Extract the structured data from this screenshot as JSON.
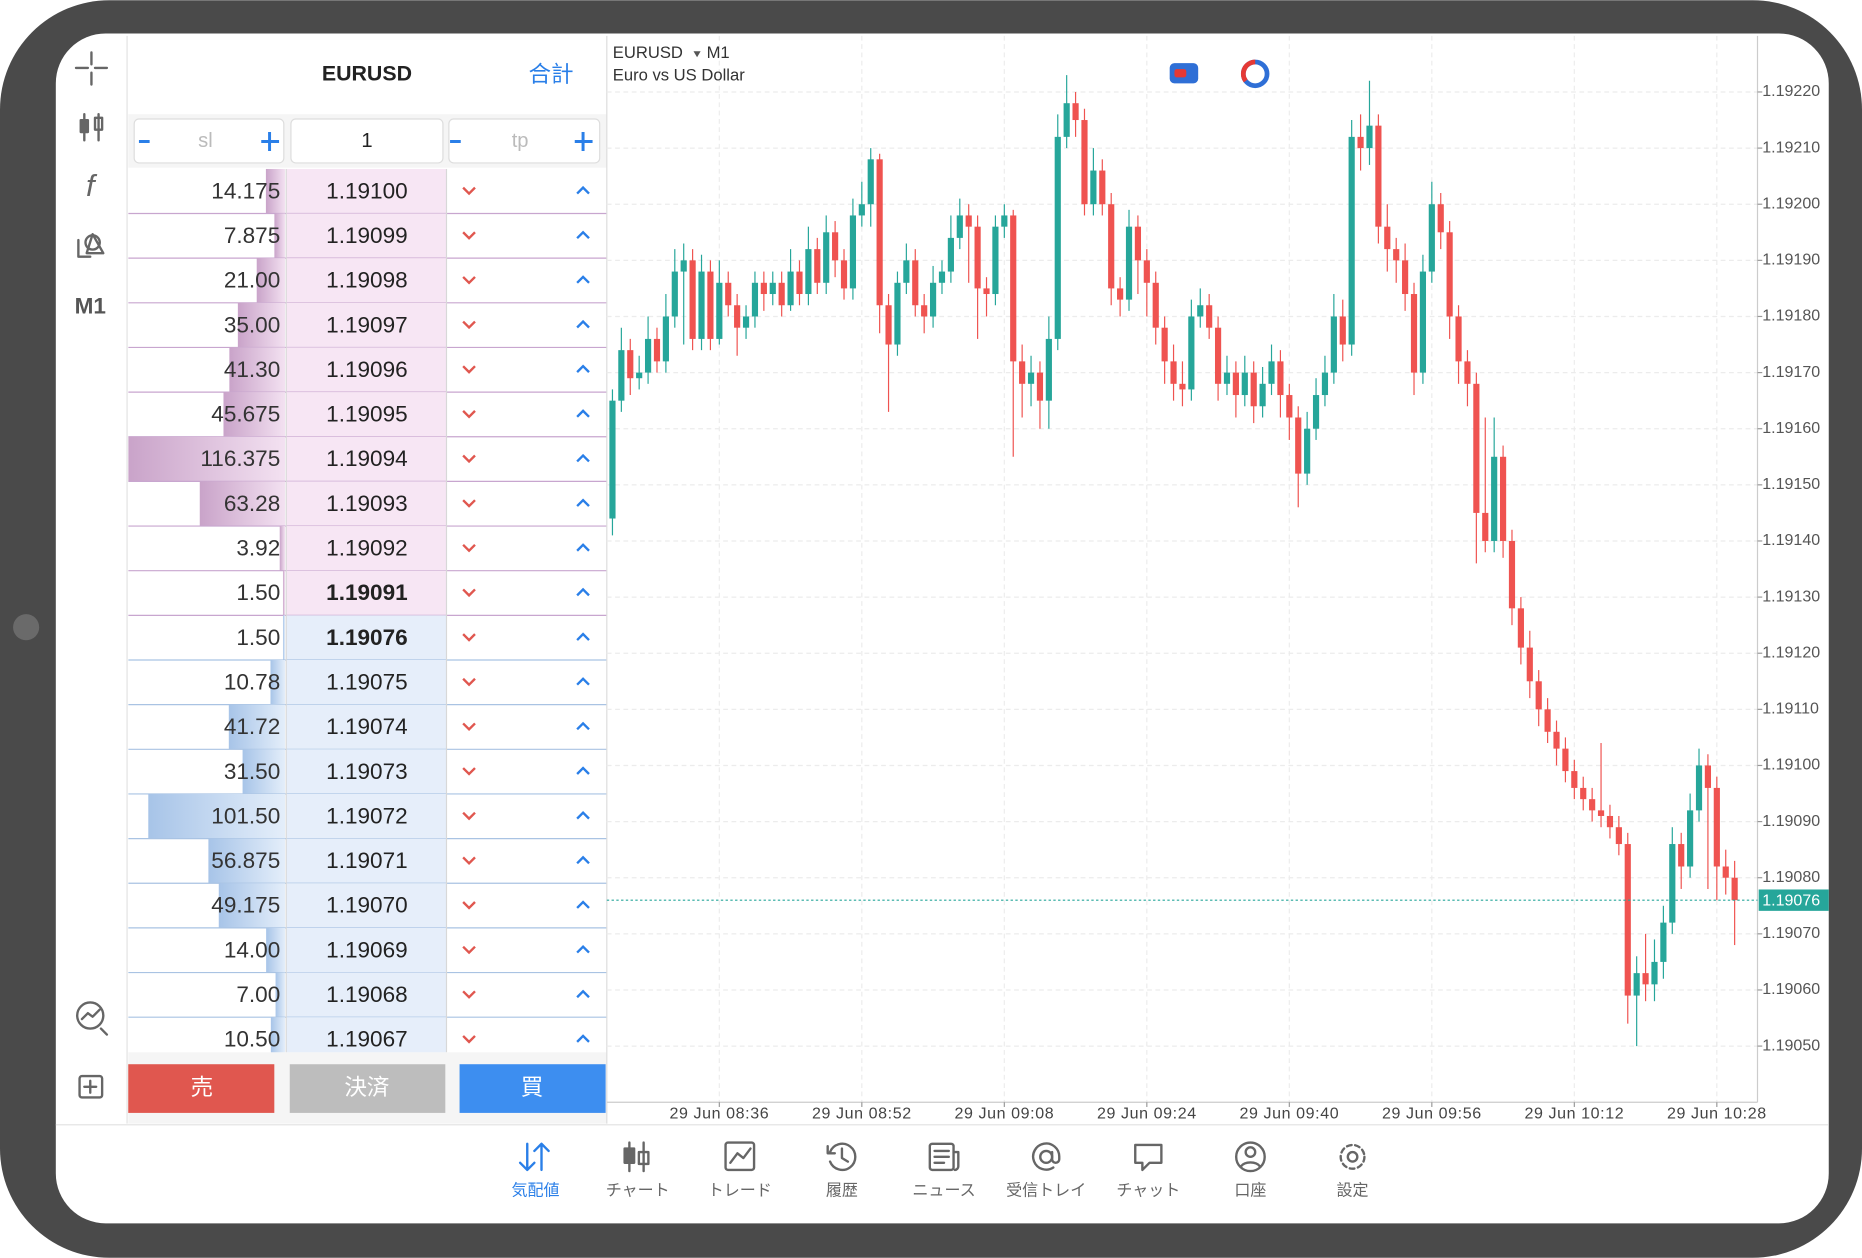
{
  "toolbar": {
    "timeframe": "M1"
  },
  "dom": {
    "symbol": "EURUSD",
    "total": "合計",
    "sl": "sl",
    "lots": "1",
    "tp": "tp",
    "asks": {
      "prices": [
        "1.19100",
        "1.19099",
        "1.19098",
        "1.19097",
        "1.19096",
        "1.19095",
        "1.19094",
        "1.19093",
        "1.19092",
        "1.19091"
      ],
      "volumes": [
        14.175,
        7.875,
        21,
        35,
        41.3,
        45.675,
        116.375,
        63.28,
        3.92,
        1.5
      ],
      "volume_labels": [
        "14.175",
        "7.875",
        "21.00",
        "35.00",
        "41.30",
        "45.675",
        "116.375",
        "63.28",
        "3.92",
        "1.50"
      ]
    },
    "bids": {
      "prices": [
        "1.19076",
        "1.19075",
        "1.19074",
        "1.19073",
        "1.19072",
        "1.19071",
        "1.19070",
        "1.19069",
        "1.19068",
        "1.19067"
      ],
      "volumes": [
        1.5,
        10.78,
        41.72,
        31.5,
        101.5,
        56.875,
        49.175,
        14,
        7,
        10.5
      ],
      "volume_labels": [
        "1.50",
        "10.78",
        "41.72",
        "31.50",
        "101.50",
        "56.875",
        "49.175",
        "14.00",
        "7.00",
        "10.50"
      ]
    },
    "buttons": {
      "sell": "売",
      "close": "決済",
      "buy": "買"
    }
  },
  "chart_data": {
    "type": "candlestick",
    "symbol": "EURUSD",
    "timeframe": "M1",
    "description": "Euro vs US Dollar",
    "colors": {
      "up": "#26a69a",
      "down": "#ef5350"
    },
    "grid": true,
    "x": [
      "29 Jun 08:24",
      "29 Jun 08:25",
      "29 Jun 08:26",
      "29 Jun 08:27",
      "29 Jun 08:28",
      "29 Jun 08:29",
      "29 Jun 08:30",
      "29 Jun 08:31",
      "29 Jun 08:32",
      "29 Jun 08:33",
      "29 Jun 08:34",
      "29 Jun 08:35",
      "29 Jun 08:36",
      "29 Jun 08:37",
      "29 Jun 08:38",
      "29 Jun 08:39",
      "29 Jun 08:40",
      "29 Jun 08:41",
      "29 Jun 08:42",
      "29 Jun 08:43",
      "29 Jun 08:44",
      "29 Jun 08:45",
      "29 Jun 08:46",
      "29 Jun 08:47",
      "29 Jun 08:48",
      "29 Jun 08:49",
      "29 Jun 08:50",
      "29 Jun 08:51",
      "29 Jun 08:52",
      "29 Jun 08:53",
      "29 Jun 08:54",
      "29 Jun 08:55",
      "29 Jun 08:56",
      "29 Jun 08:57",
      "29 Jun 08:58",
      "29 Jun 08:59",
      "29 Jun 09:00",
      "29 Jun 09:01",
      "29 Jun 09:02",
      "29 Jun 09:03",
      "29 Jun 09:04",
      "29 Jun 09:05",
      "29 Jun 09:06",
      "29 Jun 09:07",
      "29 Jun 09:08",
      "29 Jun 09:09",
      "29 Jun 09:10",
      "29 Jun 09:11",
      "29 Jun 09:12",
      "29 Jun 09:13",
      "29 Jun 09:14",
      "29 Jun 09:15",
      "29 Jun 09:16",
      "29 Jun 09:17",
      "29 Jun 09:18",
      "29 Jun 09:19",
      "29 Jun 09:20",
      "29 Jun 09:21",
      "29 Jun 09:22",
      "29 Jun 09:23",
      "29 Jun 09:24",
      "29 Jun 09:25",
      "29 Jun 09:26",
      "29 Jun 09:27",
      "29 Jun 09:28",
      "29 Jun 09:29",
      "29 Jun 09:30",
      "29 Jun 09:31",
      "29 Jun 09:32",
      "29 Jun 09:33",
      "29 Jun 09:34",
      "29 Jun 09:35",
      "29 Jun 09:36",
      "29 Jun 09:37",
      "29 Jun 09:38",
      "29 Jun 09:39",
      "29 Jun 09:40",
      "29 Jun 09:41",
      "29 Jun 09:42",
      "29 Jun 09:43",
      "29 Jun 09:44",
      "29 Jun 09:45",
      "29 Jun 09:46",
      "29 Jun 09:47",
      "29 Jun 09:48",
      "29 Jun 09:49",
      "29 Jun 09:50",
      "29 Jun 09:51",
      "29 Jun 09:52",
      "29 Jun 09:53",
      "29 Jun 09:54",
      "29 Jun 09:55",
      "29 Jun 09:56",
      "29 Jun 09:57",
      "29 Jun 09:58",
      "29 Jun 09:59",
      "29 Jun 10:00",
      "29 Jun 10:01",
      "29 Jun 10:02",
      "29 Jun 10:03",
      "29 Jun 10:04",
      "29 Jun 10:05",
      "29 Jun 10:06",
      "29 Jun 10:07",
      "29 Jun 10:08",
      "29 Jun 10:09",
      "29 Jun 10:10",
      "29 Jun 10:11",
      "29 Jun 10:12",
      "29 Jun 10:13",
      "29 Jun 10:14",
      "29 Jun 10:15",
      "29 Jun 10:16",
      "29 Jun 10:17",
      "29 Jun 10:18",
      "29 Jun 10:19",
      "29 Jun 10:20",
      "29 Jun 10:21",
      "29 Jun 10:22",
      "29 Jun 10:23",
      "29 Jun 10:24",
      "29 Jun 10:25",
      "29 Jun 10:26",
      "29 Jun 10:27",
      "29 Jun 10:28",
      "29 Jun 10:29",
      "29 Jun 10:30"
    ],
    "open": [
      1.19144,
      1.19165,
      1.19174,
      1.19169,
      1.1917,
      1.19176,
      1.19172,
      1.1918,
      1.19188,
      1.1919,
      1.19176,
      1.19188,
      1.19176,
      1.19186,
      1.19182,
      1.19178,
      1.1918,
      1.19186,
      1.19184,
      1.19186,
      1.19182,
      1.19188,
      1.19184,
      1.19192,
      1.19186,
      1.19195,
      1.1919,
      1.19185,
      1.19198,
      1.192,
      1.19208,
      1.19182,
      1.19175,
      1.19186,
      1.1919,
      1.19182,
      1.1918,
      1.19186,
      1.19188,
      1.19194,
      1.19198,
      1.19196,
      1.19185,
      1.19184,
      1.19196,
      1.19198,
      1.19172,
      1.19168,
      1.1917,
      1.19165,
      1.19176,
      1.19212,
      1.19218,
      1.19215,
      1.192,
      1.19206,
      1.192,
      1.19185,
      1.19183,
      1.19196,
      1.1919,
      1.19186,
      1.19178,
      1.19172,
      1.19168,
      1.19167,
      1.1918,
      1.19182,
      1.19178,
      1.19168,
      1.1917,
      1.19166,
      1.1917,
      1.19164,
      1.19168,
      1.19172,
      1.19166,
      1.19162,
      1.19152,
      1.1916,
      1.19166,
      1.1917,
      1.1918,
      1.19175,
      1.19212,
      1.1921,
      1.19214,
      1.19196,
      1.19192,
      1.1919,
      1.19184,
      1.1917,
      1.19188,
      1.192,
      1.19195,
      1.1918,
      1.19172,
      1.19168,
      1.19145,
      1.1914,
      1.19155,
      1.1914,
      1.19128,
      1.19121,
      1.19115,
      1.1911,
      1.19106,
      1.19103,
      1.19099,
      1.19096,
      1.19094,
      1.19092,
      1.19091,
      1.19089,
      1.19086,
      1.19059,
      1.19063,
      1.19061,
      1.19065,
      1.19072,
      1.19086,
      1.19082,
      1.19092,
      1.191,
      1.19096,
      1.19082,
      1.1908
    ],
    "high": [
      1.19167,
      1.19178,
      1.19176,
      1.19173,
      1.1918,
      1.19178,
      1.19184,
      1.19192,
      1.19193,
      1.19192,
      1.19191,
      1.1919,
      1.1919,
      1.19188,
      1.19184,
      1.19182,
      1.19188,
      1.19188,
      1.19188,
      1.19188,
      1.19192,
      1.1919,
      1.19196,
      1.19194,
      1.19198,
      1.19197,
      1.19192,
      1.19201,
      1.19204,
      1.1921,
      1.19209,
      1.19184,
      1.19188,
      1.19193,
      1.19192,
      1.19184,
      1.19189,
      1.1919,
      1.19198,
      1.19201,
      1.192,
      1.19198,
      1.19187,
      1.19198,
      1.192,
      1.19199,
      1.19175,
      1.19173,
      1.19172,
      1.1918,
      1.19216,
      1.19223,
      1.1922,
      1.19217,
      1.1921,
      1.19208,
      1.19202,
      1.19187,
      1.19199,
      1.19198,
      1.19192,
      1.19188,
      1.1918,
      1.19175,
      1.19172,
      1.19183,
      1.19185,
      1.19184,
      1.1918,
      1.19173,
      1.19172,
      1.19173,
      1.19172,
      1.19171,
      1.19175,
      1.19174,
      1.19168,
      1.19164,
      1.19163,
      1.19169,
      1.19173,
      1.19184,
      1.19183,
      1.19215,
      1.19216,
      1.19222,
      1.19216,
      1.192,
      1.19194,
      1.19193,
      1.19186,
      1.19191,
      1.19204,
      1.19202,
      1.19197,
      1.19182,
      1.19174,
      1.1917,
      1.19162,
      1.19162,
      1.19157,
      1.19142,
      1.1913,
      1.19124,
      1.19117,
      1.19112,
      1.19108,
      1.19105,
      1.19101,
      1.19098,
      1.19096,
      1.19104,
      1.19093,
      1.19091,
      1.19088,
      1.19066,
      1.1907,
      1.19069,
      1.19075,
      1.19089,
      1.19088,
      1.19095,
      1.19103,
      1.19102,
      1.19098,
      1.19085,
      1.19083
    ],
    "low": [
      1.19141,
      1.19163,
      1.19166,
      1.19167,
      1.19168,
      1.1917,
      1.1917,
      1.19178,
      1.19175,
      1.19174,
      1.19174,
      1.19174,
      1.19175,
      1.1918,
      1.19173,
      1.19176,
      1.19178,
      1.19181,
      1.19182,
      1.1918,
      1.19181,
      1.19182,
      1.19182,
      1.19184,
      1.19184,
      1.19187,
      1.19183,
      1.19183,
      1.19196,
      1.19196,
      1.19177,
      1.19163,
      1.19173,
      1.19184,
      1.1918,
      1.19177,
      1.19178,
      1.19184,
      1.19186,
      1.19192,
      1.19186,
      1.19176,
      1.1918,
      1.19182,
      1.19194,
      1.19155,
      1.19162,
      1.19164,
      1.1916,
      1.1916,
      1.19174,
      1.1921,
      1.19212,
      1.19198,
      1.19198,
      1.19198,
      1.19182,
      1.1918,
      1.19181,
      1.19184,
      1.1918,
      1.19175,
      1.19168,
      1.19165,
      1.19164,
      1.19165,
      1.19178,
      1.19176,
      1.19165,
      1.19166,
      1.19162,
      1.19164,
      1.19161,
      1.19162,
      1.19166,
      1.19162,
      1.19158,
      1.19146,
      1.1915,
      1.19158,
      1.19164,
      1.19168,
      1.19172,
      1.19173,
      1.19206,
      1.19207,
      1.19193,
      1.19188,
      1.19186,
      1.19181,
      1.19166,
      1.19168,
      1.19186,
      1.19192,
      1.19176,
      1.19168,
      1.19164,
      1.19136,
      1.19138,
      1.19138,
      1.19137,
      1.19125,
      1.19118,
      1.19112,
      1.19107,
      1.19104,
      1.191,
      1.19097,
      1.19094,
      1.19092,
      1.1909,
      1.19089,
      1.19087,
      1.19084,
      1.19054,
      1.1905,
      1.19058,
      1.19058,
      1.19062,
      1.1907,
      1.19078,
      1.1908,
      1.1909,
      1.19078,
      1.19076,
      1.19077,
      1.19068
    ],
    "close": [
      1.19165,
      1.19174,
      1.19169,
      1.1917,
      1.19176,
      1.19172,
      1.1918,
      1.19188,
      1.1919,
      1.19176,
      1.19188,
      1.19176,
      1.19186,
      1.19182,
      1.19178,
      1.1918,
      1.19186,
      1.19184,
      1.19186,
      1.19182,
      1.19188,
      1.19184,
      1.19192,
      1.19186,
      1.19195,
      1.1919,
      1.19185,
      1.19198,
      1.192,
      1.19208,
      1.19182,
      1.19175,
      1.19186,
      1.1919,
      1.19182,
      1.1918,
      1.19186,
      1.19188,
      1.19194,
      1.19198,
      1.19196,
      1.19185,
      1.19184,
      1.19196,
      1.19198,
      1.19172,
      1.19168,
      1.1917,
      1.19165,
      1.19176,
      1.19212,
      1.19218,
      1.19215,
      1.192,
      1.19206,
      1.192,
      1.19185,
      1.19183,
      1.19196,
      1.1919,
      1.19186,
      1.19178,
      1.19172,
      1.19168,
      1.19167,
      1.1918,
      1.19182,
      1.19178,
      1.19168,
      1.1917,
      1.19166,
      1.1917,
      1.19164,
      1.19168,
      1.19172,
      1.19166,
      1.19162,
      1.19152,
      1.1916,
      1.19166,
      1.1917,
      1.1918,
      1.19175,
      1.19212,
      1.1921,
      1.19214,
      1.19196,
      1.19192,
      1.1919,
      1.19184,
      1.1917,
      1.19188,
      1.192,
      1.19195,
      1.1918,
      1.19172,
      1.19168,
      1.19145,
      1.1914,
      1.19155,
      1.1914,
      1.19128,
      1.19121,
      1.19115,
      1.1911,
      1.19106,
      1.19103,
      1.19099,
      1.19096,
      1.19094,
      1.19092,
      1.19091,
      1.19089,
      1.19086,
      1.19059,
      1.19063,
      1.19061,
      1.19065,
      1.19072,
      1.19086,
      1.19082,
      1.19092,
      1.191,
      1.19096,
      1.19082,
      1.1908,
      1.19076
    ],
    "ylim": [
      1.1904,
      1.1923
    ],
    "yticks": [
      {
        "value": 1.1905,
        "label": "1.19050"
      },
      {
        "value": 1.1906,
        "label": "1.19060"
      },
      {
        "value": 1.1907,
        "label": "1.19070"
      },
      {
        "value": 1.1908,
        "label": "1.19080"
      },
      {
        "value": 1.1909,
        "label": "1.19090"
      },
      {
        "value": 1.191,
        "label": "1.19100"
      },
      {
        "value": 1.1911,
        "label": "1.19110"
      },
      {
        "value": 1.1912,
        "label": "1.19120"
      },
      {
        "value": 1.1913,
        "label": "1.19130"
      },
      {
        "value": 1.1914,
        "label": "1.19140"
      },
      {
        "value": 1.1915,
        "label": "1.19150"
      },
      {
        "value": 1.1916,
        "label": "1.19160"
      },
      {
        "value": 1.1917,
        "label": "1.19170"
      },
      {
        "value": 1.1918,
        "label": "1.19180"
      },
      {
        "value": 1.1919,
        "label": "1.19190"
      },
      {
        "value": 1.192,
        "label": "1.19200"
      },
      {
        "value": 1.1921,
        "label": "1.19210"
      },
      {
        "value": 1.1922,
        "label": "1.19220"
      }
    ],
    "xticks": [
      "29 Jun 08:36",
      "29 Jun 08:52",
      "29 Jun 09:08",
      "29 Jun 09:24",
      "29 Jun 09:40",
      "29 Jun 09:56",
      "29 Jun 10:12",
      "29 Jun 10:28"
    ],
    "current_price": 1.19076
  },
  "tabs": [
    "気配値",
    "チャート",
    "トレード",
    "履歴",
    "ニュース",
    "受信トレイ",
    "チャット",
    "口座",
    "設定"
  ]
}
